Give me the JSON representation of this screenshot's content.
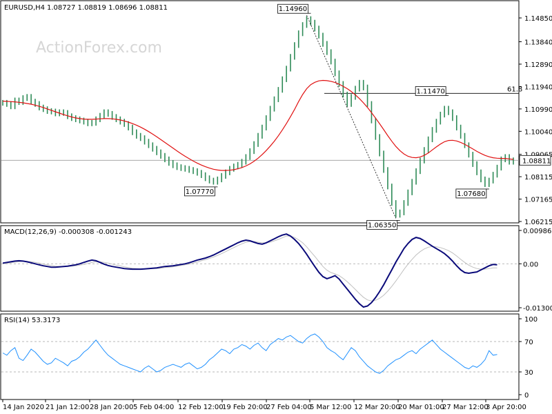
{
  "watermark": "ActionForex.com",
  "price_panel": {
    "symbol_label": "EURUSD,H4",
    "ohlc_label": "1.08727 1.08819 1.08696 1.08811",
    "ma_color": "#e01010",
    "bar_color": "#2e8b57",
    "fib_label": "61.8",
    "current_label": "1.08811",
    "current_value": 1.08811,
    "yticks": [
      "1.14850",
      "1.13840",
      "1.12890",
      "1.11940",
      "1.10990",
      "1.10040",
      "1.09065",
      "1.08115",
      "1.07165",
      "1.06215"
    ]
  },
  "macd_panel": {
    "label": "MACD(12,26,9) -0.000308 -0.001243",
    "main_color": "#0a0a7a",
    "signal_color": "#c0c0c0",
    "yticks": [
      "0.009862",
      "0.00",
      "-0.013002"
    ]
  },
  "rsi_panel": {
    "label": "RSI(14) 53.3173",
    "line_color": "#1e90ff",
    "yticks": [
      "100",
      "70",
      "30",
      "0"
    ]
  },
  "xticks": [
    "14 Jan 2020",
    "21 Jan 12:00",
    "28 Jan 20:00",
    "5 Feb 04:00",
    "12 Feb 12:00",
    "19 Feb 20:00",
    "27 Feb 04:00",
    "5 Mar 12:00",
    "12 Mar 20:00",
    "20 Mar 01:00",
    "27 Mar 12:00",
    "3 Apr 20:00"
  ],
  "chart_data": [
    {
      "type": "line",
      "name": "price",
      "ylim": [
        1.06215,
        1.1485
      ],
      "annotations": [
        {
          "text": "1.14960",
          "value": 1.1496
        },
        {
          "text": "1.11470",
          "value": 1.1147
        },
        {
          "text": "1.07770",
          "value": 1.0777
        },
        {
          "text": "1.07680",
          "value": 1.0768
        },
        {
          "text": "1.06350",
          "value": 1.0635
        }
      ],
      "fib_level": 1.1165,
      "close": [
        1.1125,
        1.112,
        1.111,
        1.1135,
        1.1128,
        1.1145,
        1.115,
        1.113,
        1.112,
        1.1105,
        1.1098,
        1.109,
        1.1088,
        1.108,
        1.1085,
        1.1082,
        1.1068,
        1.106,
        1.1055,
        1.105,
        1.1045,
        1.1038,
        1.104,
        1.1055,
        1.107,
        1.1085,
        1.1078,
        1.1065,
        1.1055,
        1.1045,
        1.1035,
        1.102,
        1.1,
        1.0985,
        1.0975,
        1.096,
        1.0945,
        1.093,
        1.0915,
        1.09,
        1.0885,
        1.087,
        1.086,
        1.0852,
        1.0848,
        1.0845,
        1.084,
        1.0835,
        1.0828,
        1.0818,
        1.0805,
        1.0795,
        1.079,
        1.08,
        1.0815,
        1.083,
        1.0845,
        1.0855,
        1.0862,
        1.0875,
        1.0895,
        1.092,
        1.095,
        1.0985,
        1.102,
        1.106,
        1.11,
        1.114,
        1.118,
        1.1225,
        1.127,
        1.132,
        1.137,
        1.142,
        1.1455,
        1.148,
        1.1465,
        1.144,
        1.141,
        1.1375,
        1.134,
        1.13,
        1.125,
        1.1205,
        1.116,
        1.112,
        1.115,
        1.1185,
        1.121,
        1.119,
        1.112,
        1.105,
        1.098,
        1.091,
        1.084,
        1.077,
        1.07,
        1.065,
        1.066,
        1.07,
        1.0745,
        1.079,
        1.0835,
        1.088,
        1.0925,
        1.097,
        1.101,
        1.1045,
        1.1075,
        1.11,
        1.1085,
        1.106,
        1.102,
        1.0985,
        1.0945,
        1.0905,
        1.0865,
        1.083,
        1.08,
        1.078,
        1.0795,
        1.082,
        1.085,
        1.0885,
        1.0895,
        1.0875,
        1.0881
      ],
      "ma": [
        1.1132,
        1.1131,
        1.113,
        1.1129,
        1.1127,
        1.1125,
        1.1122,
        1.1119,
        1.1115,
        1.111,
        1.1105,
        1.1099,
        1.1093,
        1.1087,
        1.1081,
        1.1075,
        1.107,
        1.1065,
        1.1061,
        1.1058,
        1.1056,
        1.1055,
        1.1055,
        1.1056,
        1.1057,
        1.1058,
        1.1058,
        1.1057,
        1.1055,
        1.1052,
        1.1048,
        1.1043,
        1.1037,
        1.103,
        1.1022,
        1.1013,
        1.1003,
        1.0992,
        1.0981,
        1.0969,
        1.0957,
        1.0945,
        1.0933,
        1.0921,
        1.0909,
        1.0898,
        1.0888,
        1.0878,
        1.0869,
        1.0861,
        1.0854,
        1.0848,
        1.0843,
        1.084,
        1.0838,
        1.0838,
        1.0839,
        1.0841,
        1.0845,
        1.085,
        1.0857,
        1.0866,
        1.0877,
        1.089,
        1.0905,
        1.0922,
        1.0941,
        1.0962,
        1.0985,
        1.101,
        1.1037,
        1.1066,
        1.1097,
        1.113,
        1.116,
        1.1185,
        1.1202,
        1.1212,
        1.1218,
        1.122,
        1.1219,
        1.1216,
        1.1211,
        1.1204,
        1.1195,
        1.1185,
        1.1173,
        1.1159,
        1.1143,
        1.1125,
        1.1105,
        1.1083,
        1.106,
        1.1036,
        1.1011,
        1.0986,
        1.0962,
        1.094,
        1.0922,
        1.0908,
        1.0898,
        1.0893,
        1.0892,
        1.0895,
        1.0902,
        1.0912,
        1.0925,
        1.0938,
        1.095,
        1.096,
        1.0965,
        1.0966,
        1.0963,
        1.0957,
        1.0949,
        1.0939,
        1.0929,
        1.0919,
        1.091,
        1.0902,
        1.0896,
        1.0892,
        1.089,
        1.0889,
        1.0889,
        1.0887,
        1.0885
      ]
    },
    {
      "type": "line",
      "name": "MACD(12,26,9)",
      "ylim": [
        -0.013002,
        0.009862
      ],
      "main": [
        0.0002,
        0.0004,
        0.0006,
        0.0008,
        0.0009,
        0.0008,
        0.0006,
        0.0003,
        0.0,
        -0.0003,
        -0.0006,
        -0.0008,
        -0.001,
        -0.001,
        -0.0009,
        -0.0008,
        -0.0007,
        -0.0005,
        -0.0003,
        0.0,
        0.0004,
        0.0008,
        0.0011,
        0.0009,
        0.0004,
        -0.0001,
        -0.0005,
        -0.0008,
        -0.001,
        -0.0012,
        -0.0014,
        -0.0015,
        -0.0016,
        -0.0016,
        -0.0016,
        -0.0015,
        -0.0014,
        -0.0013,
        -0.0012,
        -0.001,
        -0.0008,
        -0.0007,
        -0.0006,
        -0.0004,
        -0.0002,
        0.0,
        0.0003,
        0.0007,
        0.0011,
        0.0014,
        0.0017,
        0.0021,
        0.0026,
        0.0032,
        0.0038,
        0.0044,
        0.005,
        0.0056,
        0.0062,
        0.0067,
        0.007,
        0.0068,
        0.0064,
        0.006,
        0.0058,
        0.0062,
        0.0068,
        0.0074,
        0.008,
        0.0085,
        0.0088,
        0.0082,
        0.0072,
        0.006,
        0.0045,
        0.0028,
        0.001,
        -0.0008,
        -0.0025,
        -0.0038,
        -0.0044,
        -0.004,
        -0.0035,
        -0.0045,
        -0.006,
        -0.0075,
        -0.009,
        -0.0105,
        -0.0118,
        -0.0128,
        -0.0125,
        -0.0115,
        -0.01,
        -0.0082,
        -0.0062,
        -0.004,
        -0.0018,
        0.0005,
        0.0025,
        0.0045,
        0.006,
        0.0072,
        0.0078,
        0.0075,
        0.0068,
        0.006,
        0.0052,
        0.0045,
        0.0038,
        0.003,
        0.002,
        0.0008,
        -0.0006,
        -0.0018,
        -0.0026,
        -0.0028,
        -0.0026,
        -0.0024,
        -0.0018,
        -0.0012,
        -0.0006,
        -0.0002,
        -0.0003
      ],
      "signal": [
        0.0,
        0.0001,
        0.0003,
        0.0005,
        0.0006,
        0.0007,
        0.0007,
        0.0006,
        0.0004,
        0.0002,
        -0.0001,
        -0.0003,
        -0.0005,
        -0.0007,
        -0.0008,
        -0.0008,
        -0.0008,
        -0.0007,
        -0.0006,
        -0.0004,
        -0.0002,
        0.0001,
        0.0004,
        0.0006,
        0.0006,
        0.0004,
        0.0002,
        -0.0001,
        -0.0004,
        -0.0006,
        -0.0009,
        -0.0011,
        -0.0013,
        -0.0014,
        -0.0015,
        -0.0015,
        -0.0015,
        -0.0014,
        -0.0014,
        -0.0013,
        -0.0011,
        -0.001,
        -0.0009,
        -0.0007,
        -0.0005,
        -0.0003,
        -0.0001,
        0.0002,
        0.0005,
        0.0009,
        0.0012,
        0.0016,
        0.002,
        0.0025,
        0.003,
        0.0036,
        0.0042,
        0.0048,
        0.0054,
        0.0059,
        0.0064,
        0.0066,
        0.0066,
        0.0064,
        0.0062,
        0.0062,
        0.0064,
        0.0068,
        0.0072,
        0.0077,
        0.0082,
        0.0082,
        0.0078,
        0.0071,
        0.0062,
        0.005,
        0.0036,
        0.0022,
        0.0007,
        -0.0008,
        -0.0019,
        -0.0026,
        -0.003,
        -0.0035,
        -0.0043,
        -0.0053,
        -0.0064,
        -0.0076,
        -0.0088,
        -0.0099,
        -0.0107,
        -0.011,
        -0.0108,
        -0.0102,
        -0.0093,
        -0.0081,
        -0.0067,
        -0.0051,
        -0.0034,
        -0.0017,
        -0.0001,
        0.0013,
        0.0026,
        0.0036,
        0.0044,
        0.0049,
        0.0051,
        0.005,
        0.0048,
        0.0044,
        0.0039,
        0.0032,
        0.0023,
        0.0013,
        0.0004,
        -0.0004,
        -0.001,
        -0.0014,
        -0.0016,
        -0.0016,
        -0.0014,
        -0.0012,
        -0.0012
      ]
    },
    {
      "type": "line",
      "name": "RSI(14)",
      "ylim": [
        0,
        100
      ],
      "levels": [
        70,
        30
      ],
      "values": [
        55,
        52,
        58,
        62,
        48,
        45,
        52,
        60,
        56,
        50,
        44,
        40,
        42,
        48,
        45,
        42,
        38,
        44,
        46,
        50,
        56,
        60,
        66,
        72,
        65,
        58,
        52,
        48,
        44,
        40,
        38,
        36,
        34,
        32,
        30,
        35,
        38,
        34,
        30,
        32,
        36,
        38,
        40,
        38,
        36,
        40,
        42,
        38,
        34,
        36,
        40,
        46,
        50,
        55,
        60,
        58,
        54,
        60,
        62,
        66,
        64,
        60,
        65,
        68,
        62,
        58,
        66,
        70,
        74,
        72,
        76,
        78,
        74,
        70,
        68,
        74,
        78,
        80,
        76,
        70,
        62,
        58,
        55,
        50,
        46,
        54,
        62,
        58,
        50,
        44,
        38,
        34,
        30,
        28,
        32,
        38,
        42,
        46,
        48,
        52,
        56,
        58,
        54,
        60,
        64,
        68,
        72,
        66,
        60,
        56,
        52,
        48,
        44,
        40,
        36,
        34,
        38,
        36,
        40,
        46,
        58,
        52,
        53
      ]
    }
  ]
}
